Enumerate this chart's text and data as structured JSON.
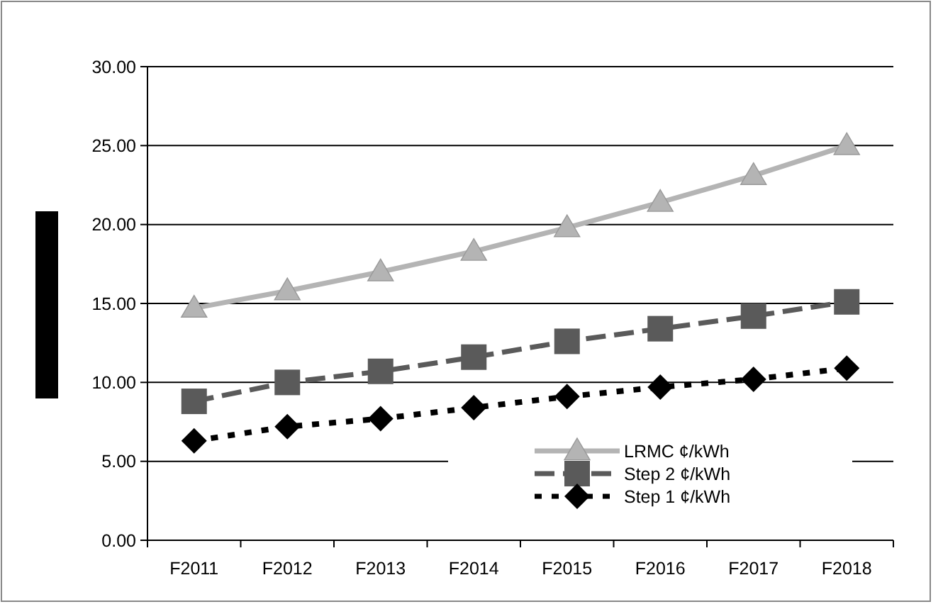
{
  "chart_data": {
    "type": "line",
    "categories": [
      "F2011",
      "F2012",
      "F2013",
      "F2014",
      "F2015",
      "F2016",
      "F2017",
      "F2018"
    ],
    "series": [
      {
        "name": "LRMC ¢/kWh",
        "color": "#b4b4b4",
        "marker": "triangle",
        "line_style": "solid",
        "values": [
          14.7,
          15.8,
          17.0,
          18.3,
          19.8,
          21.4,
          23.1,
          25.0
        ]
      },
      {
        "name": "Step 2 ¢/kWh",
        "color": "#5a5a5a",
        "marker": "square",
        "line_style": "dashed",
        "values": [
          8.8,
          10.0,
          10.7,
          11.6,
          12.6,
          13.4,
          14.2,
          15.1
        ]
      },
      {
        "name": "Step 1 ¢/kWh",
        "color": "#000000",
        "marker": "diamond",
        "line_style": "dotted",
        "values": [
          6.3,
          7.2,
          7.7,
          8.4,
          9.1,
          9.7,
          10.2,
          10.9
        ]
      }
    ],
    "ylim": [
      0,
      30
    ],
    "yticks": [
      {
        "value": 0,
        "label": "0.00"
      },
      {
        "value": 5,
        "label": "5.00"
      },
      {
        "value": 10,
        "label": "10.00"
      },
      {
        "value": 15,
        "label": "15.00"
      },
      {
        "value": 20,
        "label": "20.00"
      },
      {
        "value": 25,
        "label": "25.00"
      },
      {
        "value": 30,
        "label": "30.00"
      }
    ],
    "grid": "y",
    "legend": "bottom right"
  }
}
